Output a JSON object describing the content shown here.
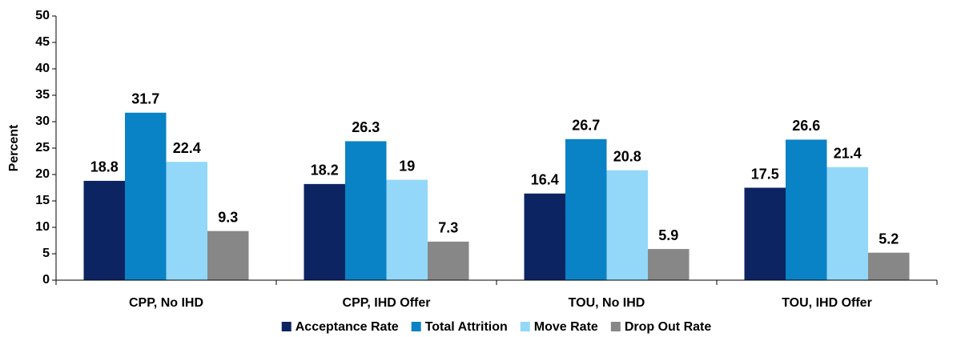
{
  "chart_data": {
    "type": "bar",
    "ylabel": "Percent",
    "categories": [
      "CPP, No IHD",
      "CPP, IHD Offer",
      "TOU, No IHD",
      "TOU, IHD Offer"
    ],
    "series": [
      {
        "name": "Acceptance Rate",
        "color": "#0c2461",
        "values": [
          18.8,
          18.2,
          16.4,
          17.5
        ]
      },
      {
        "name": "Total Attrition",
        "color": "#0a82c6",
        "values": [
          31.7,
          26.3,
          26.7,
          26.6
        ]
      },
      {
        "name": "Move Rate",
        "color": "#93d8f8",
        "values": [
          22.4,
          19,
          20.8,
          21.4
        ]
      },
      {
        "name": "Drop Out Rate",
        "color": "#878787",
        "values": [
          9.3,
          7.3,
          5.9,
          5.2
        ]
      }
    ],
    "ylim": [
      0,
      50
    ],
    "yticks": [
      0,
      5,
      10,
      15,
      20,
      25,
      30,
      35,
      40,
      45,
      50
    ],
    "legend": "bottom"
  }
}
